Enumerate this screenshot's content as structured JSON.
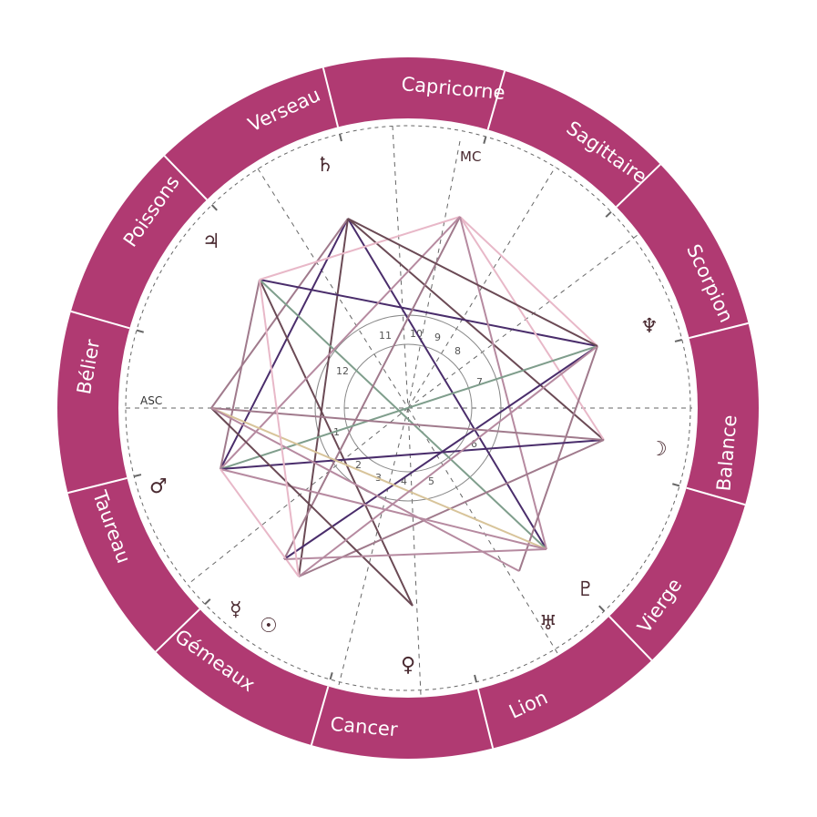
{
  "colors": {
    "ring": "#b03a72",
    "ring_divider": "#ffffff",
    "glyph": "#4a2a31",
    "dashed": "#666666",
    "inner_circle": "#888888"
  },
  "signs": [
    {
      "label": "Bélier"
    },
    {
      "label": "Taureau"
    },
    {
      "label": "Gémeaux"
    },
    {
      "label": "Cancer"
    },
    {
      "label": "Lion"
    },
    {
      "label": "Vierge"
    },
    {
      "label": "Balance"
    },
    {
      "label": "Scorpion"
    },
    {
      "label": "Sagittaire"
    },
    {
      "label": "Capricorne"
    },
    {
      "label": "Verseau"
    },
    {
      "label": "Poissons"
    }
  ],
  "axes": {
    "asc": "ASC",
    "mc": "MC"
  },
  "houses": [
    "1",
    "2",
    "3",
    "4",
    "5",
    "6",
    "7",
    "8",
    "9",
    "10",
    "11",
    "12"
  ],
  "planets": [
    {
      "name": "saturn",
      "glyph": "♄"
    },
    {
      "name": "jupiter",
      "glyph": "♃"
    },
    {
      "name": "mars",
      "glyph": "♂"
    },
    {
      "name": "mercury",
      "glyph": "☿"
    },
    {
      "name": "sun",
      "glyph": "☉"
    },
    {
      "name": "venus",
      "glyph": "♀"
    },
    {
      "name": "uranus",
      "glyph": "♅"
    },
    {
      "name": "pluto",
      "glyph": "♇"
    },
    {
      "name": "moon",
      "glyph": "☽"
    },
    {
      "name": "neptune",
      "glyph": "♆"
    }
  ],
  "aspect_colors": [
    "#4a2d6b",
    "#6b4a55",
    "#a07a8c",
    "#e8b8c8",
    "#7f9e8c",
    "#d8c49a",
    "#b68aa0"
  ]
}
